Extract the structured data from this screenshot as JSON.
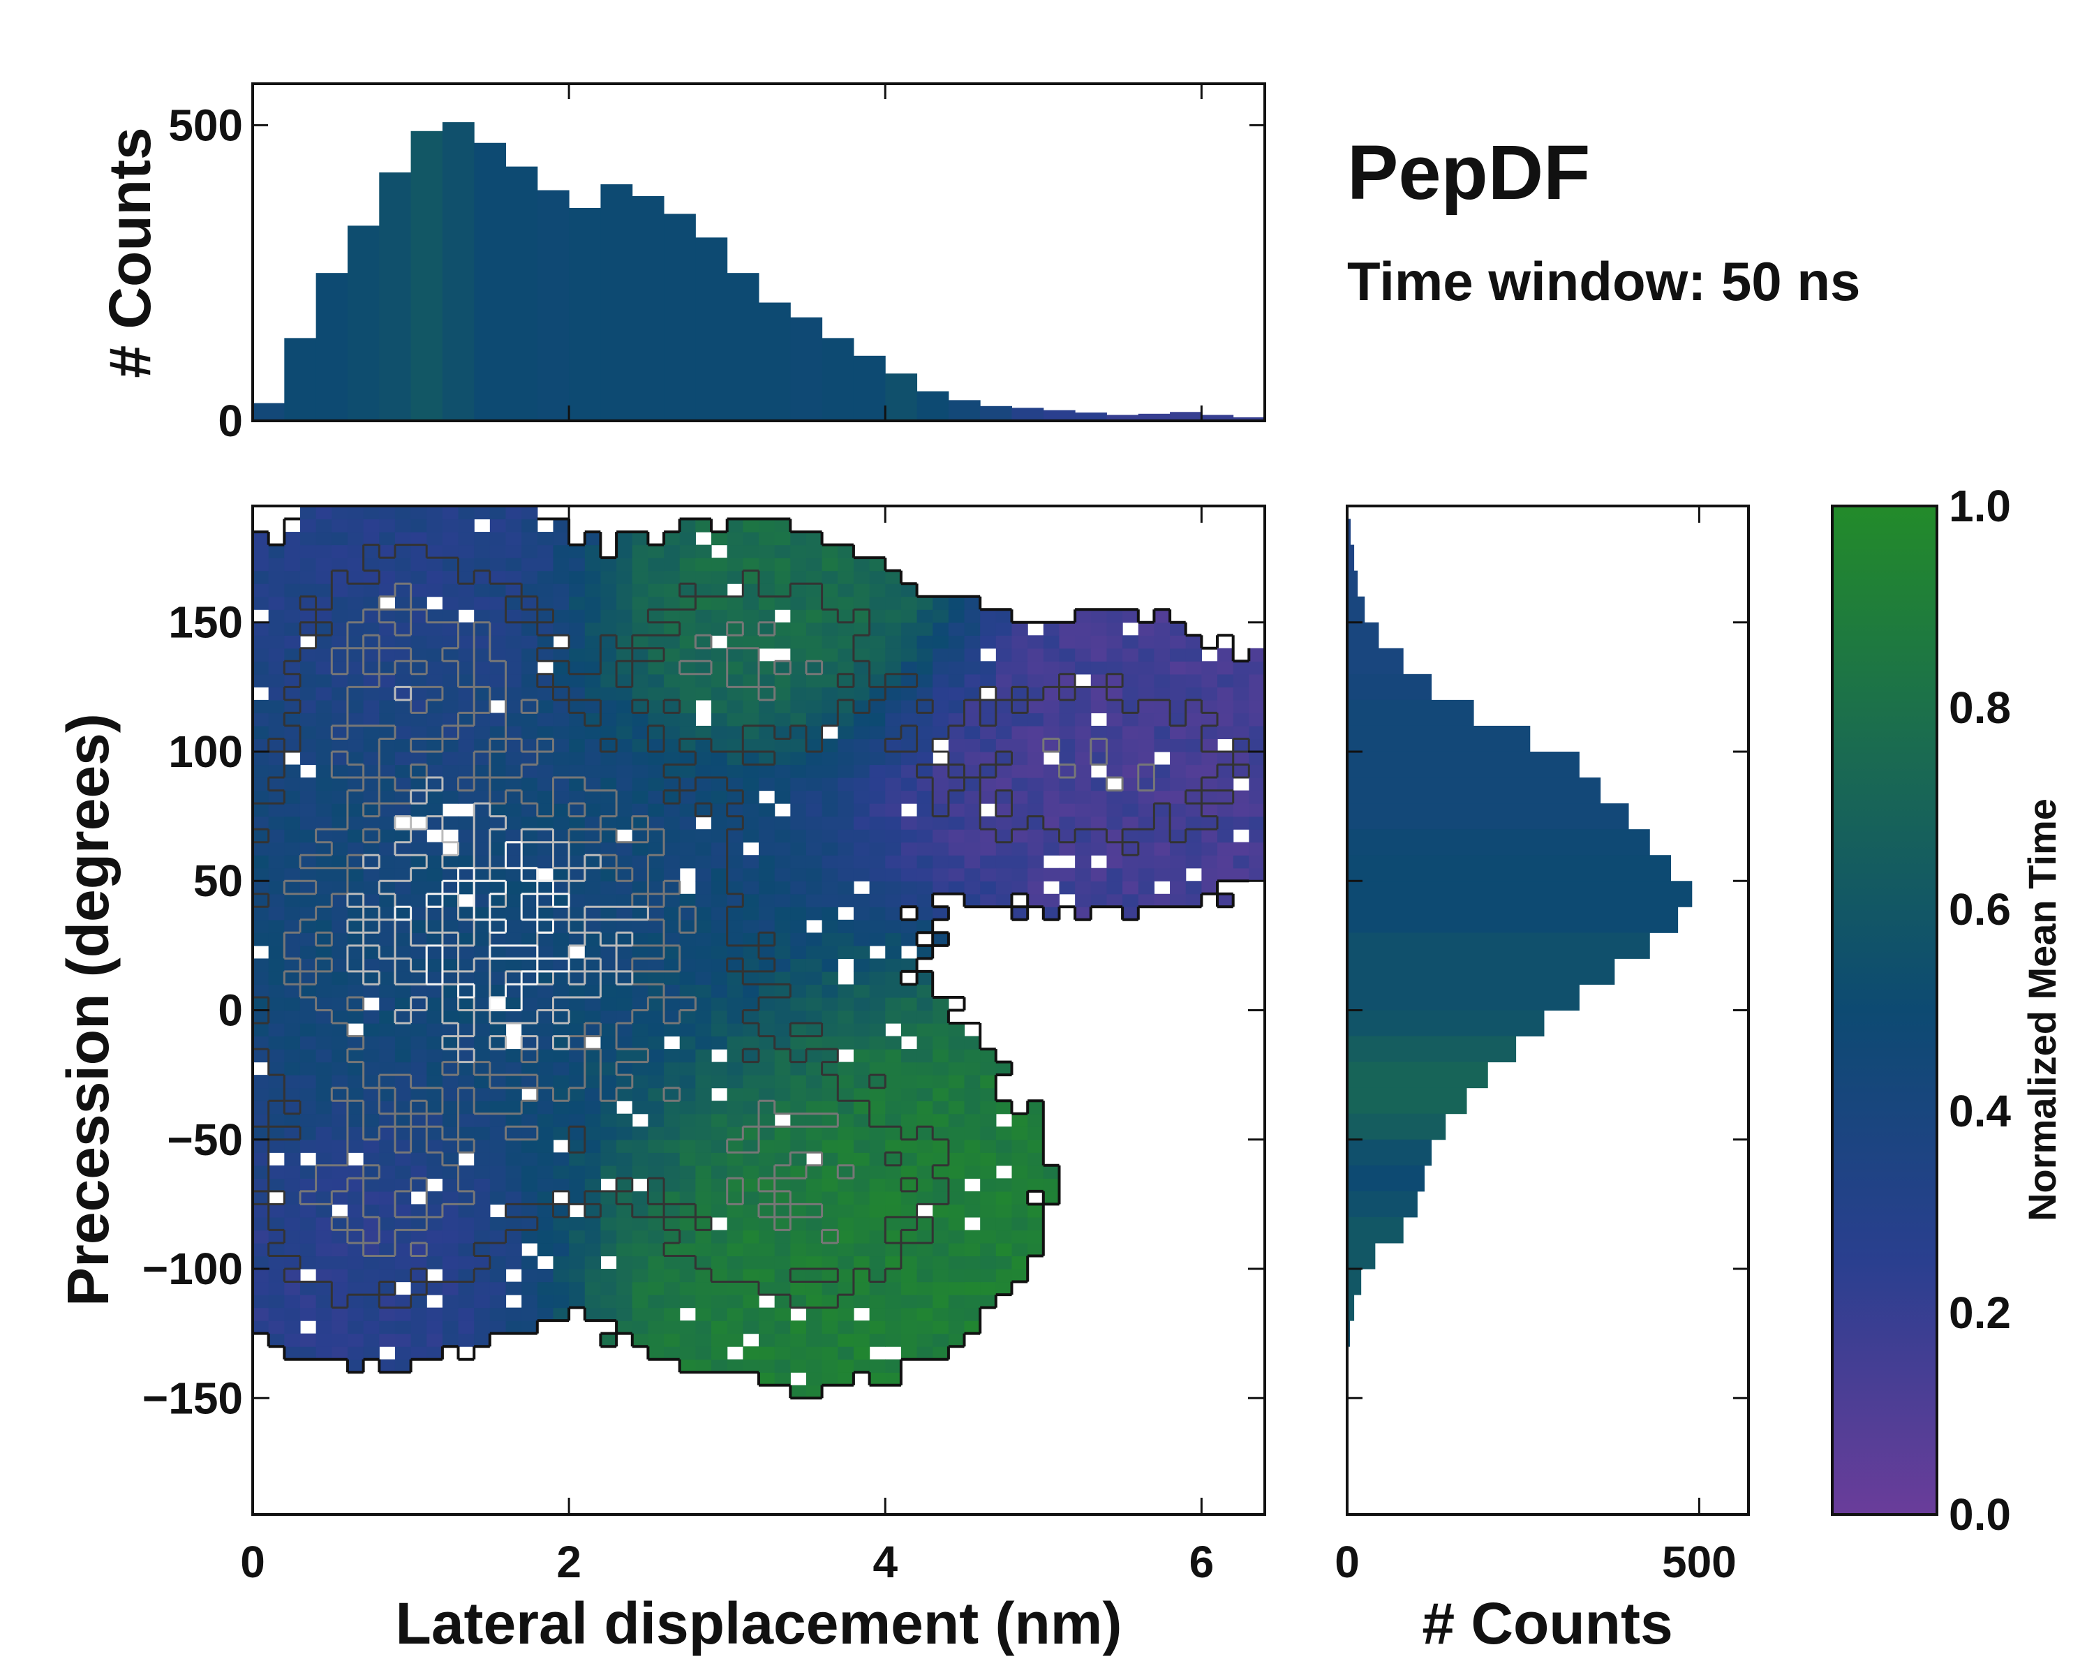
{
  "title": "PepDF",
  "subtitle": "Time window: 50 ns",
  "colors": {
    "low": "#6a3d9a",
    "mid": "#0d4a72",
    "high": "#238b2a",
    "contour_dark": "#111111",
    "contour_light": "#f2f2f2"
  },
  "chart_data": [
    {
      "type": "heatmap",
      "name": "joint-distribution",
      "xlabel": "Lateral displacement (nm)",
      "ylabel": "Precession (degrees)",
      "xlim": [
        0,
        6.4
      ],
      "ylim": [
        -195,
        195
      ],
      "xticks": [
        "0",
        "2",
        "4",
        "6"
      ],
      "yticks": [
        "150",
        "100",
        "50",
        "0",
        "−50",
        "−100",
        "−150"
      ],
      "ytick_values": [
        150,
        100,
        50,
        0,
        -50,
        -100,
        -150
      ],
      "xtick_values": [
        0,
        2,
        4,
        6
      ],
      "color_encoding": "Normalized Mean Time",
      "regions": [
        {
          "name": "main-cluster",
          "center": [
            1.5,
            30
          ],
          "spread": [
            1.1,
            55
          ],
          "mean_time": 0.45
        },
        {
          "name": "upper-left-lobe",
          "center": [
            1.0,
            140
          ],
          "spread": [
            0.6,
            35
          ],
          "mean_time": 0.3
        },
        {
          "name": "upper-green-lobe",
          "center": [
            3.2,
            140
          ],
          "spread": [
            0.6,
            25
          ],
          "mean_time": 0.8
        },
        {
          "name": "right-purple-lobe",
          "center": [
            5.3,
            95
          ],
          "spread": [
            0.9,
            30
          ],
          "mean_time": 0.15
        },
        {
          "name": "lower-green-lobe",
          "center": [
            3.5,
            -70
          ],
          "spread": [
            0.8,
            40
          ],
          "mean_time": 0.9
        },
        {
          "name": "lower-left-lobe",
          "center": [
            0.8,
            -80
          ],
          "spread": [
            0.6,
            30
          ],
          "mean_time": 0.25
        }
      ]
    },
    {
      "type": "bar",
      "name": "x-marginal-histogram",
      "ylabel": "# Counts",
      "xlim": [
        0,
        6.4
      ],
      "ylim": [
        0,
        570
      ],
      "yticks": [
        "0",
        "500"
      ],
      "ytick_values": [
        0,
        500
      ],
      "x_centers": [
        0.1,
        0.3,
        0.5,
        0.7,
        0.9,
        1.1,
        1.3,
        1.5,
        1.7,
        1.9,
        2.1,
        2.3,
        2.5,
        2.7,
        2.9,
        3.1,
        3.3,
        3.5,
        3.7,
        3.9,
        4.1,
        4.3,
        4.5,
        4.7,
        4.9,
        5.1,
        5.3,
        5.5,
        5.7,
        5.9,
        6.1,
        6.3
      ],
      "values": [
        30,
        140,
        250,
        330,
        420,
        490,
        505,
        470,
        430,
        390,
        360,
        400,
        380,
        350,
        310,
        250,
        200,
        175,
        140,
        110,
        80,
        50,
        35,
        25,
        22,
        18,
        14,
        10,
        12,
        15,
        10,
        6
      ],
      "mean_time": [
        0.45,
        0.5,
        0.5,
        0.52,
        0.55,
        0.6,
        0.55,
        0.5,
        0.5,
        0.48,
        0.5,
        0.5,
        0.5,
        0.5,
        0.5,
        0.5,
        0.5,
        0.48,
        0.5,
        0.5,
        0.55,
        0.5,
        0.45,
        0.4,
        0.3,
        0.25,
        0.25,
        0.2,
        0.2,
        0.2,
        0.2,
        0.2
      ]
    },
    {
      "type": "bar",
      "orientation": "horizontal",
      "name": "y-marginal-histogram",
      "xlabel": "# Counts",
      "xlim": [
        0,
        570
      ],
      "ylim": [
        -195,
        195
      ],
      "xticks": [
        "0",
        "500"
      ],
      "xtick_values": [
        0,
        500
      ],
      "y_centers": [
        185,
        175,
        165,
        155,
        145,
        135,
        125,
        115,
        105,
        95,
        85,
        75,
        65,
        55,
        45,
        35,
        25,
        15,
        5,
        -5,
        -15,
        -25,
        -35,
        -45,
        -55,
        -65,
        -75,
        -85,
        -95,
        -105,
        -115,
        -125
      ],
      "values": [
        5,
        10,
        15,
        25,
        45,
        80,
        120,
        180,
        260,
        330,
        360,
        400,
        430,
        460,
        490,
        470,
        430,
        380,
        330,
        280,
        240,
        200,
        170,
        140,
        120,
        110,
        100,
        80,
        40,
        20,
        10,
        4
      ],
      "mean_time": [
        0.35,
        0.35,
        0.38,
        0.4,
        0.4,
        0.4,
        0.42,
        0.45,
        0.45,
        0.45,
        0.45,
        0.45,
        0.48,
        0.5,
        0.5,
        0.5,
        0.55,
        0.55,
        0.55,
        0.58,
        0.65,
        0.7,
        0.7,
        0.65,
        0.55,
        0.5,
        0.55,
        0.6,
        0.6,
        0.6,
        0.6,
        0.55
      ]
    },
    {
      "type": "colorbar",
      "name": "colorbar",
      "label": "Normalized Mean Time",
      "range": [
        0,
        1
      ],
      "ticks": [
        "0.0",
        "0.2",
        "0.4",
        "0.6",
        "0.8",
        "1.0"
      ],
      "tick_values": [
        0,
        0.2,
        0.4,
        0.6,
        0.8,
        1.0
      ]
    }
  ]
}
